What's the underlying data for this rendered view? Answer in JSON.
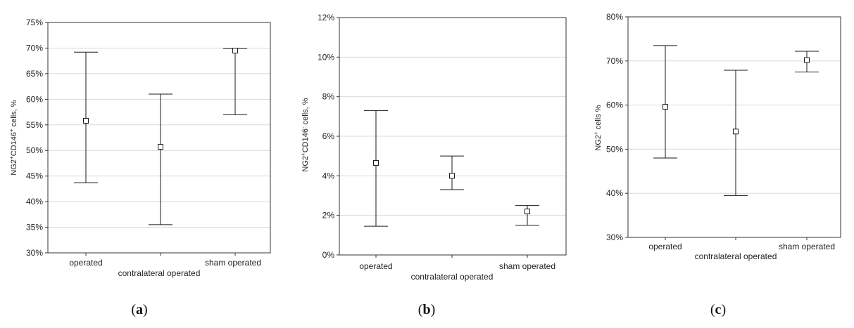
{
  "chart_data": [
    {
      "type": "scatter",
      "panel_label": "a",
      "ylabel_parts": [
        "NG2",
        "+",
        "CD146",
        "+",
        " cells, %"
      ],
      "ylim": [
        30,
        75
      ],
      "ytick_step": 5,
      "grid": true,
      "categories": [
        "operated",
        "contralateral operated",
        "sham operated"
      ],
      "points": [
        {
          "category": "operated",
          "mean": 55.8,
          "upper": 69.2,
          "lower": 43.7
        },
        {
          "category": "contralateral operated",
          "mean": 50.7,
          "upper": 61.0,
          "lower": 35.5
        },
        {
          "category": "sham operated",
          "mean": 69.5,
          "upper": 69.9,
          "lower": 57.0
        }
      ]
    },
    {
      "type": "scatter",
      "panel_label": "b",
      "ylabel_parts": [
        "NG2",
        "+",
        "CD146",
        "-",
        " cells, %"
      ],
      "ylim": [
        0,
        12
      ],
      "ytick_step": 2,
      "grid": true,
      "categories": [
        "operated",
        "contralateral operated",
        "sham operated"
      ],
      "points": [
        {
          "category": "operated",
          "mean": 4.65,
          "upper": 7.3,
          "lower": 1.45
        },
        {
          "category": "contralateral operated",
          "mean": 4.0,
          "upper": 5.0,
          "lower": 3.3
        },
        {
          "category": "sham operated",
          "mean": 2.2,
          "upper": 2.5,
          "lower": 1.5
        }
      ]
    },
    {
      "type": "scatter",
      "panel_label": "c",
      "ylabel_parts": [
        "NG2",
        "+",
        " cells %"
      ],
      "ylim": [
        30,
        80
      ],
      "ytick_step": 10,
      "grid": true,
      "categories": [
        "operated",
        "contralateral operated",
        "sham operated"
      ],
      "points": [
        {
          "category": "operated",
          "mean": 59.6,
          "upper": 73.5,
          "lower": 48.0
        },
        {
          "category": "contralateral operated",
          "mean": 54.0,
          "upper": 67.9,
          "lower": 39.5
        },
        {
          "category": "sham operated",
          "mean": 70.2,
          "upper": 72.2,
          "lower": 67.5
        }
      ]
    }
  ],
  "colors": {
    "frame": "#333333",
    "grid": "#d9d9d9",
    "marks": "#1a1a1a",
    "marker_fill": "#ffffff"
  }
}
